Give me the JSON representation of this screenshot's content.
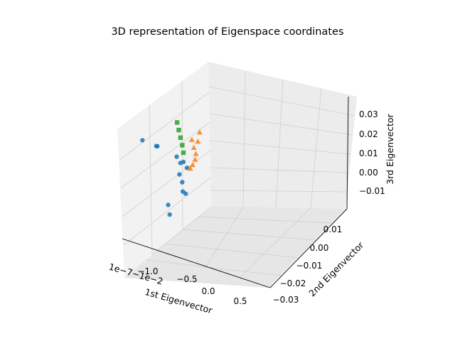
{
  "chart_data": {
    "type": "scatter",
    "projection": "3d",
    "title": "3D representation of Eigenspace coordinates",
    "xlabel": "1st Eigenvector",
    "ylabel": "2nd Eigenvector",
    "zlabel": "3rd Eigenvector",
    "x_offset_text": "1e−7−1e−2",
    "x_ticks": [
      "−1.0",
      "−0.5",
      "0.0",
      "0.5"
    ],
    "y_ticks": [
      "−0.03",
      "−0.02",
      "−0.01",
      "0.00",
      "0.01"
    ],
    "z_ticks": [
      "−0.01",
      "0.00",
      "0.01",
      "0.02",
      "0.03"
    ],
    "grid": true,
    "series": [
      {
        "marker": "circle",
        "color": "#1f77b4",
        "points": [
          [
            -1.15,
            0.0,
            0.008
          ],
          [
            -0.9,
            0.0,
            0.006
          ],
          [
            -0.88,
            0.0,
            0.006
          ],
          [
            -0.45,
            -0.002,
            0.004
          ],
          [
            -0.3,
            -0.004,
            0.003
          ],
          [
            0.3,
            -0.024,
            0.0
          ],
          [
            0.45,
            -0.027,
            -0.002
          ],
          [
            -0.1,
            -0.006,
            0.003
          ],
          [
            0.0,
            -0.01,
            0.01
          ],
          [
            0.02,
            -0.011,
            0.0
          ],
          [
            0.03,
            -0.011,
            -0.005
          ],
          [
            0.0,
            -0.009,
            -0.008
          ],
          [
            0.01,
            -0.012,
            0.005
          ]
        ]
      },
      {
        "marker": "triangle",
        "color": "#ff7f0e",
        "points": [
          [
            -0.75,
            0.012,
            0.0
          ],
          [
            -0.55,
            0.008,
            0.0
          ],
          [
            -0.35,
            0.004,
            0.001
          ],
          [
            -0.2,
            0.0,
            0.002
          ],
          [
            -0.08,
            -0.004,
            0.003
          ],
          [
            0.0,
            -0.007,
            0.004
          ],
          [
            -0.15,
            0.0,
            0.012
          ],
          [
            -0.2,
            0.002,
            0.015
          ]
        ]
      },
      {
        "marker": "square",
        "color": "#2ca02c",
        "points": [
          [
            0.0,
            -0.01,
            0.015
          ],
          [
            0.02,
            -0.011,
            0.02
          ],
          [
            0.03,
            -0.012,
            0.025
          ],
          [
            0.04,
            -0.013,
            0.03
          ],
          [
            0.05,
            -0.014,
            0.035
          ]
        ]
      }
    ]
  }
}
